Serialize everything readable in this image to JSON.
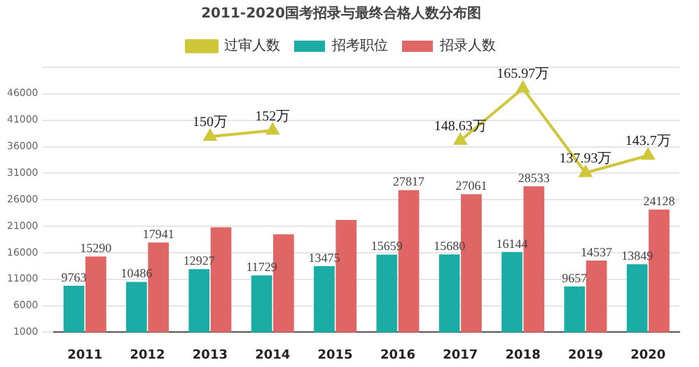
{
  "chart_data": {
    "type": "bar",
    "title": "2011-2020国考招录与最终合格人数分布图",
    "categories": [
      "2011",
      "2012",
      "2013",
      "2014",
      "2015",
      "2016",
      "2017",
      "2018",
      "2019",
      "2020"
    ],
    "series": [
      {
        "name": "招考职位",
        "color": "#1aaca5",
        "values": [
          9763,
          10486,
          12927,
          11729,
          13475,
          15659,
          15680,
          16144,
          9657,
          13849
        ],
        "value_labels": [
          "9763",
          "10486",
          "12927",
          "11729",
          "13475",
          "15659",
          "15680",
          "16144",
          "9657",
          "13849"
        ]
      },
      {
        "name": "招录人数",
        "color": "#e06666",
        "values": [
          15290,
          17941,
          20800,
          19500,
          22200,
          27817,
          27061,
          28533,
          14537,
          24128
        ],
        "value_labels": [
          "15290",
          "17941",
          null,
          null,
          null,
          "27817",
          "27061",
          "28533",
          "14537",
          "24128"
        ]
      },
      {
        "name": "过审人数",
        "type": "line",
        "axis": "y2",
        "color": "#cfc63a",
        "marker": "triangle",
        "values": [
          null,
          null,
          150,
          152,
          null,
          null,
          148.63,
          165.97,
          137.93,
          143.7
        ],
        "value_labels": [
          null,
          null,
          "150万",
          "152万",
          null,
          null,
          "148.63万",
          "165.97万",
          "137.93万",
          "143.7万"
        ]
      }
    ],
    "ylim": [
      1000,
      51000
    ],
    "yticks": [
      1000,
      6000,
      11000,
      16000,
      21000,
      26000,
      31000,
      36000,
      41000,
      46000,
      {
        "value": 51000,
        "label": null
      }
    ],
    "y2lim": [
      85,
      173
    ],
    "tick_labels": "xy",
    "grid": "y",
    "legend": "top"
  }
}
